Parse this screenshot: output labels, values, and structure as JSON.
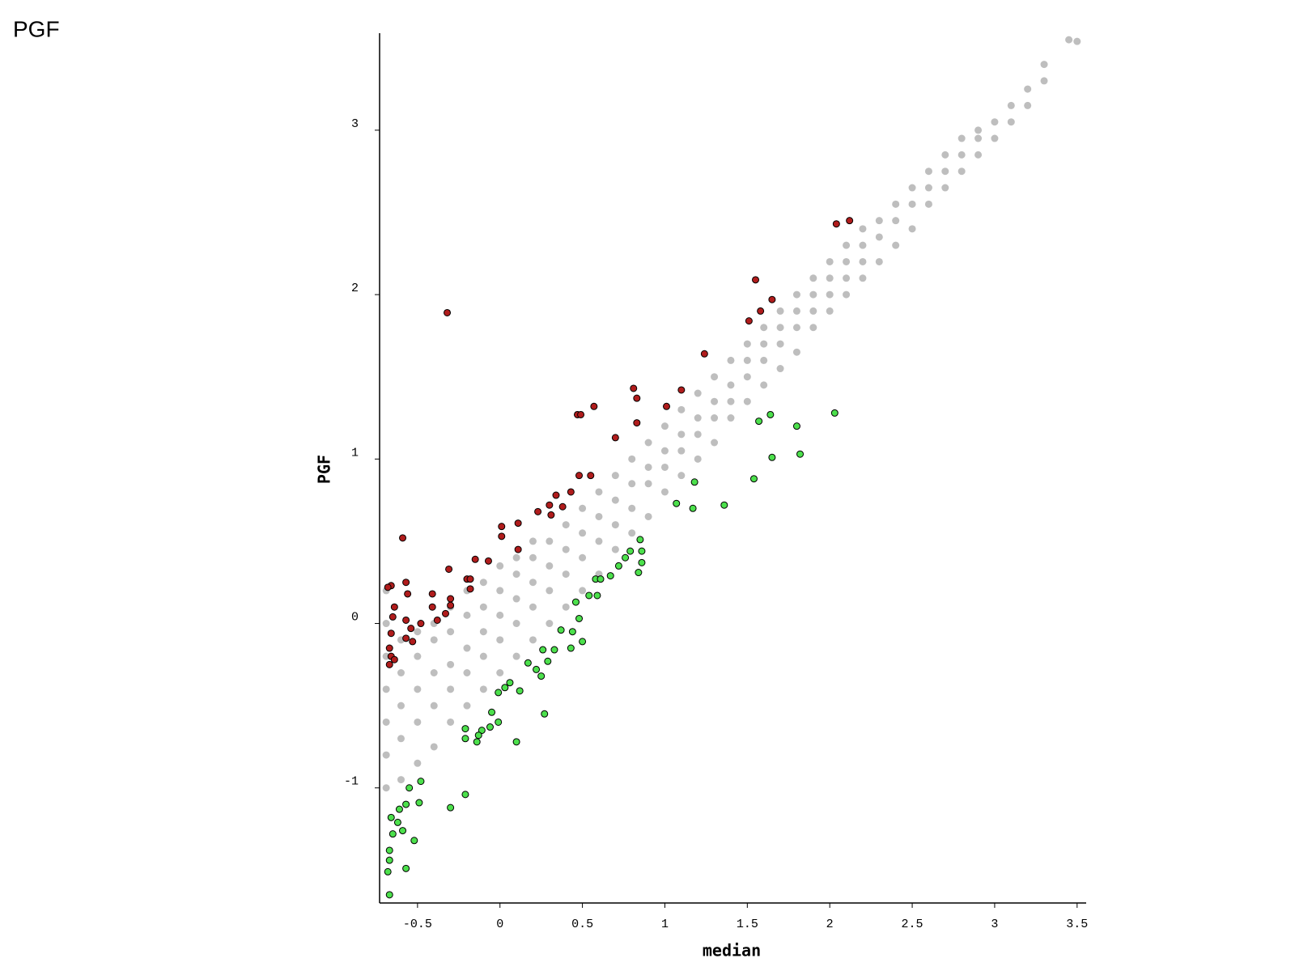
{
  "chart_data": {
    "type": "scatter",
    "title": "PGF",
    "xlabel": "median",
    "ylabel": "PGF",
    "xlim": [
      -0.73,
      3.555
    ],
    "ylim": [
      -1.7,
      3.59
    ],
    "xticks": [
      -0.5,
      0,
      0.5,
      1,
      1.5,
      2,
      2.5,
      3,
      3.5
    ],
    "yticks": [
      -1,
      0,
      1,
      2,
      3
    ],
    "series": [
      {
        "color": "#bebebe",
        "x": [
          -0.69,
          -0.69,
          -0.69,
          -0.69,
          -0.69,
          -0.69,
          -0.69,
          -0.6,
          -0.6,
          -0.6,
          -0.6,
          -0.6,
          -0.5,
          -0.5,
          -0.5,
          -0.5,
          -0.5,
          -0.4,
          -0.4,
          -0.4,
          -0.4,
          -0.4,
          -0.3,
          -0.3,
          -0.3,
          -0.3,
          -0.3,
          -0.2,
          -0.2,
          -0.2,
          -0.2,
          -0.2,
          -0.1,
          -0.1,
          -0.1,
          -0.1,
          -0.1,
          0,
          0,
          0,
          0,
          0,
          0.1,
          0.1,
          0.1,
          0.1,
          0.1,
          0.2,
          0.2,
          0.2,
          0.2,
          0.2,
          0.3,
          0.3,
          0.3,
          0.3,
          0.4,
          0.4,
          0.4,
          0.4,
          0.5,
          0.5,
          0.5,
          0.5,
          0.6,
          0.6,
          0.6,
          0.6,
          0.7,
          0.7,
          0.7,
          0.7,
          0.8,
          0.8,
          0.8,
          0.8,
          0.9,
          0.9,
          0.9,
          0.9,
          1.0,
          1.0,
          1.0,
          1.0,
          1.1,
          1.1,
          1.1,
          1.1,
          1.2,
          1.2,
          1.2,
          1.2,
          1.3,
          1.3,
          1.3,
          1.3,
          1.4,
          1.4,
          1.4,
          1.4,
          1.5,
          1.5,
          1.5,
          1.5,
          1.6,
          1.6,
          1.6,
          1.6,
          1.7,
          1.7,
          1.7,
          1.7,
          1.8,
          1.8,
          1.8,
          1.8,
          1.9,
          1.9,
          1.9,
          1.9,
          2.0,
          2.0,
          2.0,
          2.0,
          2.1,
          2.1,
          2.1,
          2.1,
          2.2,
          2.2,
          2.2,
          2.2,
          2.3,
          2.3,
          2.3,
          2.4,
          2.4,
          2.4,
          2.5,
          2.5,
          2.5,
          2.6,
          2.6,
          2.6,
          2.7,
          2.7,
          2.7,
          2.8,
          2.8,
          2.8,
          2.9,
          2.9,
          2.9,
          3.0,
          3.0,
          3.1,
          3.1,
          3.2,
          3.2,
          3.3,
          3.3,
          3.45,
          3.5
        ],
        "y": [
          -1.0,
          -0.8,
          -0.6,
          -0.4,
          -0.2,
          0.0,
          0.2,
          -0.95,
          -0.7,
          -0.5,
          -0.3,
          -0.1,
          -0.85,
          -0.6,
          -0.4,
          -0.2,
          -0.05,
          -0.75,
          -0.5,
          -0.3,
          -0.1,
          0.0,
          -0.6,
          -0.4,
          -0.25,
          -0.05,
          0.1,
          -0.5,
          -0.3,
          -0.15,
          0.05,
          0.2,
          -0.4,
          -0.2,
          -0.05,
          0.1,
          0.25,
          -0.3,
          -0.1,
          0.05,
          0.2,
          0.35,
          -0.2,
          0.0,
          0.15,
          0.3,
          0.4,
          -0.1,
          0.1,
          0.25,
          0.4,
          0.5,
          0.0,
          0.2,
          0.35,
          0.5,
          0.1,
          0.3,
          0.45,
          0.6,
          0.2,
          0.4,
          0.55,
          0.7,
          0.3,
          0.5,
          0.65,
          0.8,
          0.45,
          0.6,
          0.75,
          0.9,
          0.55,
          0.7,
          0.85,
          1.0,
          0.65,
          0.85,
          0.95,
          1.1,
          0.8,
          0.95,
          1.05,
          1.2,
          0.9,
          1.05,
          1.15,
          1.3,
          1.0,
          1.15,
          1.25,
          1.4,
          1.1,
          1.25,
          1.35,
          1.5,
          1.25,
          1.35,
          1.45,
          1.6,
          1.35,
          1.5,
          1.6,
          1.7,
          1.45,
          1.6,
          1.7,
          1.8,
          1.55,
          1.7,
          1.8,
          1.9,
          1.65,
          1.8,
          1.9,
          2.0,
          1.8,
          1.9,
          2.0,
          2.1,
          1.9,
          2.0,
          2.1,
          2.2,
          2.0,
          2.1,
          2.2,
          2.3,
          2.1,
          2.2,
          2.3,
          2.4,
          2.2,
          2.35,
          2.45,
          2.3,
          2.45,
          2.55,
          2.4,
          2.55,
          2.65,
          2.55,
          2.65,
          2.75,
          2.65,
          2.75,
          2.85,
          2.75,
          2.85,
          2.95,
          2.85,
          2.95,
          3.0,
          2.95,
          3.05,
          3.05,
          3.15,
          3.15,
          3.25,
          3.3,
          3.4,
          3.55,
          3.54
        ]
      },
      {
        "color": "#b01c1c",
        "edgecolor": "#000000",
        "x": [
          -0.32,
          1.55,
          1.65,
          1.58,
          1.51,
          2.04,
          2.12,
          1.24,
          0.81,
          0.83,
          1.1,
          0.57,
          0.47,
          0.49,
          0.83,
          1.01,
          0.7,
          0.48,
          0.55,
          0.43,
          0.34,
          0.3,
          0.38,
          0.23,
          0.31,
          0.11,
          0.01,
          0.01,
          -0.59,
          0.11,
          -0.07,
          -0.15,
          -0.31,
          -0.2,
          -0.18,
          -0.18,
          -0.57,
          -0.66,
          -0.68,
          -0.56,
          -0.41,
          -0.3,
          -0.3,
          -0.41,
          -0.64,
          -0.33,
          -0.65,
          -0.38,
          -0.48,
          -0.57,
          -0.54,
          -0.66,
          -0.57,
          -0.53,
          -0.67,
          -0.66,
          -0.67,
          -0.64
        ],
        "y": [
          1.89,
          2.09,
          1.97,
          1.9,
          1.84,
          2.43,
          2.45,
          1.64,
          1.43,
          1.37,
          1.42,
          1.32,
          1.27,
          1.27,
          1.22,
          1.32,
          1.13,
          0.9,
          0.9,
          0.8,
          0.78,
          0.72,
          0.71,
          0.68,
          0.66,
          0.61,
          0.59,
          0.53,
          0.52,
          0.45,
          0.38,
          0.39,
          0.33,
          0.27,
          0.27,
          0.21,
          0.25,
          0.23,
          0.22,
          0.18,
          0.18,
          0.15,
          0.11,
          0.1,
          0.1,
          0.06,
          0.04,
          0.02,
          0.0,
          0.02,
          -0.03,
          -0.06,
          -0.09,
          -0.11,
          -0.15,
          -0.2,
          -0.25,
          -0.22
        ]
      },
      {
        "color": "#4ce04c",
        "edgecolor": "#000000",
        "x": [
          2.03,
          1.64,
          1.57,
          1.8,
          1.65,
          1.82,
          1.54,
          1.18,
          1.07,
          1.17,
          1.36,
          0.85,
          0.86,
          0.79,
          0.76,
          0.86,
          0.84,
          0.72,
          0.67,
          0.58,
          0.61,
          0.54,
          0.59,
          0.46,
          0.48,
          0.44,
          0.37,
          0.5,
          0.43,
          0.33,
          0.26,
          0.29,
          0.17,
          0.22,
          0.25,
          0.06,
          0.03,
          0.12,
          -0.01,
          0.27,
          -0.05,
          -0.01,
          -0.06,
          -0.11,
          -0.21,
          -0.13,
          -0.21,
          -0.14,
          0.1,
          -0.21,
          -0.3,
          -0.48,
          -0.55,
          -0.49,
          -0.57,
          -0.61,
          -0.59,
          -0.52,
          -0.65,
          -0.67,
          -0.67,
          -0.57,
          -0.68,
          -0.67,
          -0.62,
          -0.66
        ],
        "y": [
          1.28,
          1.27,
          1.23,
          1.2,
          1.01,
          1.03,
          0.88,
          0.86,
          0.73,
          0.7,
          0.72,
          0.51,
          0.44,
          0.44,
          0.4,
          0.37,
          0.31,
          0.35,
          0.29,
          0.27,
          0.27,
          0.17,
          0.17,
          0.13,
          0.03,
          -0.05,
          -0.04,
          -0.11,
          -0.15,
          -0.16,
          -0.16,
          -0.23,
          -0.24,
          -0.28,
          -0.32,
          -0.36,
          -0.39,
          -0.41,
          -0.42,
          -0.55,
          -0.54,
          -0.6,
          -0.63,
          -0.65,
          -0.64,
          -0.68,
          -0.7,
          -0.72,
          -0.72,
          -1.04,
          -1.12,
          -0.96,
          -1.0,
          -1.09,
          -1.1,
          -1.13,
          -1.26,
          -1.32,
          -1.28,
          -1.38,
          -1.44,
          -1.49,
          -1.51,
          -1.65,
          -1.21,
          -1.18
        ]
      }
    ]
  }
}
